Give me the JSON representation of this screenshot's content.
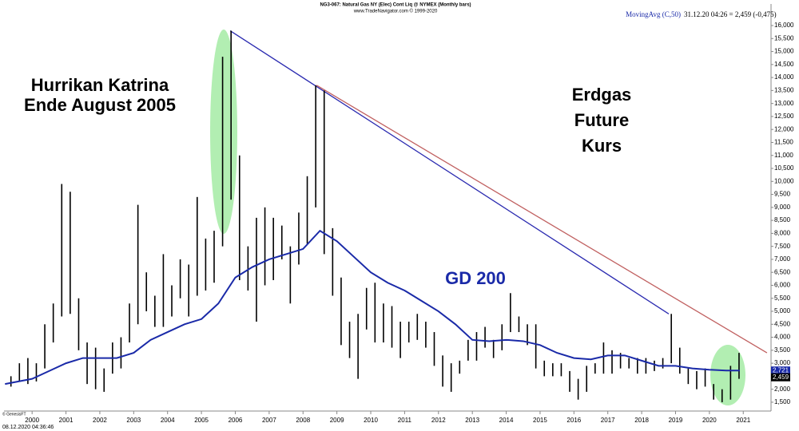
{
  "chart_data": {
    "type": "ohlc",
    "title": "NG3-067: Natural Gas NY (Elec) Cont Liq @ NYMEX  (Monthly bars)",
    "subtitle": "www.TradeNavigator.com © 1999-2020",
    "legend_name": "MovingAvg (C,50)",
    "legend_value": "31.12.20 04:26 = 2,459 (-0,475)",
    "footer_left": "© GenesisFT",
    "footer_date": "08.12.2020 04:36:46",
    "annotations": [
      {
        "text": "Hurrikan Katrina"
      },
      {
        "text": "Ende August 2005"
      },
      {
        "text": "Erdgas"
      },
      {
        "text": "Future"
      },
      {
        "text": "Kurs"
      },
      {
        "text": "GD 200"
      }
    ],
    "color": "#000000",
    "x": [
      1999.375,
      1999.625,
      1999.875,
      2000.125,
      2000.375,
      2000.625,
      2000.875,
      2001.125,
      2001.375,
      2001.625,
      2001.875,
      2002.125,
      2002.375,
      2002.625,
      2002.875,
      2003.125,
      2003.375,
      2003.625,
      2003.875,
      2004.125,
      2004.375,
      2004.625,
      2004.875,
      2005.125,
      2005.375,
      2005.625,
      2005.875,
      2006.125,
      2006.375,
      2006.625,
      2006.875,
      2007.125,
      2007.375,
      2007.625,
      2007.875,
      2008.125,
      2008.375,
      2008.625,
      2008.875,
      2009.125,
      2009.375,
      2009.625,
      2009.875,
      2010.125,
      2010.375,
      2010.625,
      2010.875,
      2011.125,
      2011.375,
      2011.625,
      2011.875,
      2012.125,
      2012.375,
      2012.625,
      2012.875,
      2013.125,
      2013.375,
      2013.625,
      2013.875,
      2014.125,
      2014.375,
      2014.625,
      2014.875,
      2015.125,
      2015.375,
      2015.625,
      2015.875,
      2016.125,
      2016.375,
      2016.625,
      2016.875,
      2017.125,
      2017.375,
      2017.625,
      2017.875,
      2018.125,
      2018.375,
      2018.625,
      2018.875,
      2019.125,
      2019.375,
      2019.625,
      2019.875,
      2020.125,
      2020.375,
      2020.625,
      2020.875
    ],
    "high": [
      2.5,
      3.0,
      3.2,
      3.0,
      4.5,
      5.3,
      9.9,
      9.6,
      5.5,
      3.8,
      3.6,
      2.8,
      3.8,
      4.0,
      5.3,
      9.1,
      6.5,
      5.6,
      7.2,
      6.0,
      7.0,
      6.8,
      9.4,
      7.8,
      8.1,
      14.8,
      15.8,
      11.0,
      7.5,
      8.6,
      9.0,
      8.6,
      8.3,
      7.5,
      8.8,
      10.2,
      13.7,
      13.5,
      8.2,
      6.3,
      4.6,
      4.9,
      5.9,
      6.1,
      5.3,
      5.2,
      4.6,
      4.6,
      4.9,
      4.6,
      4.2,
      3.3,
      3.0,
      3.1,
      3.9,
      4.2,
      4.4,
      3.9,
      4.5,
      5.7,
      4.8,
      4.5,
      4.5,
      3.1,
      3.0,
      3.0,
      2.7,
      2.4,
      2.9,
      3.0,
      3.8,
      3.5,
      3.4,
      3.2,
      3.2,
      3.2,
      3.1,
      3.2,
      4.9,
      3.6,
      2.8,
      2.7,
      2.8,
      2.2,
      2.0,
      2.9,
      3.4
    ],
    "low": [
      2.1,
      2.3,
      2.2,
      2.3,
      2.8,
      3.8,
      4.8,
      4.9,
      3.5,
      2.2,
      2.0,
      1.9,
      2.6,
      2.8,
      3.8,
      4.5,
      5.0,
      4.4,
      4.4,
      4.8,
      5.5,
      4.8,
      5.6,
      5.8,
      6.1,
      7.5,
      9.3,
      6.2,
      5.8,
      4.6,
      6.0,
      6.2,
      7.0,
      5.3,
      6.8,
      7.6,
      9.0,
      7.2,
      5.6,
      3.7,
      3.2,
      2.4,
      4.3,
      3.8,
      3.8,
      3.6,
      3.2,
      3.8,
      3.9,
      3.6,
      2.9,
      2.1,
      1.9,
      2.6,
      3.1,
      3.1,
      3.6,
      3.2,
      3.5,
      4.2,
      4.2,
      3.7,
      2.8,
      2.5,
      2.5,
      2.5,
      1.9,
      1.6,
      1.9,
      2.6,
      2.6,
      2.6,
      2.8,
      2.8,
      2.6,
      2.6,
      2.7,
      2.8,
      3.0,
      2.6,
      2.2,
      2.0,
      2.1,
      1.6,
      1.5,
      1.6,
      2.4
    ],
    "ma": {
      "name": "GD 200",
      "color": "#1a2aa8",
      "x": [
        1999.2,
        2000.0,
        2000.5,
        2001.0,
        2001.5,
        2002.0,
        2002.5,
        2003.0,
        2003.5,
        2004.0,
        2004.5,
        2005.0,
        2005.5,
        2006.0,
        2006.5,
        2007.0,
        2007.5,
        2008.0,
        2008.5,
        2009.0,
        2009.5,
        2010.0,
        2010.5,
        2011.0,
        2011.5,
        2012.0,
        2012.5,
        2013.0,
        2013.5,
        2014.0,
        2014.5,
        2015.0,
        2015.5,
        2016.0,
        2016.5,
        2017.0,
        2017.5,
        2018.0,
        2018.5,
        2019.0,
        2019.5,
        2020.0,
        2020.5,
        2020.9
      ],
      "values": [
        2.2,
        2.4,
        2.7,
        3.0,
        3.2,
        3.2,
        3.2,
        3.4,
        3.9,
        4.2,
        4.5,
        4.7,
        5.3,
        6.3,
        6.7,
        7.0,
        7.2,
        7.4,
        8.1,
        7.7,
        7.1,
        6.5,
        6.1,
        5.8,
        5.4,
        5.0,
        4.5,
        3.9,
        3.85,
        3.9,
        3.85,
        3.7,
        3.4,
        3.2,
        3.15,
        3.3,
        3.3,
        3.1,
        2.9,
        2.9,
        2.8,
        2.75,
        2.72,
        2.72
      ]
    },
    "trendlines": [
      {
        "color": "#2a2ab0",
        "x": [
          2005.85,
          2018.8
        ],
        "values": [
          15.8,
          4.9
        ]
      },
      {
        "color": "#c06060",
        "x": [
          2008.4,
          2021.7
        ],
        "values": [
          13.7,
          3.4
        ]
      }
    ],
    "price_labels": [
      {
        "value": 2.721,
        "label": "2,721",
        "color": "#1a2aa8"
      },
      {
        "value": 2.459,
        "label": "2,459",
        "color": "#000000"
      }
    ],
    "xlim": [
      1999.17,
      2021.82
    ],
    "xticks": [
      2000,
      2001,
      2002,
      2003,
      2004,
      2005,
      2006,
      2007,
      2008,
      2009,
      2010,
      2011,
      2012,
      2013,
      2014,
      2015,
      2016,
      2017,
      2018,
      2019,
      2020,
      2021
    ],
    "ylim": [
      1.16,
      16.83
    ],
    "yticks": [
      {
        "value": 1.5,
        "label": "1,500"
      },
      {
        "value": 2,
        "label": "2,000"
      },
      {
        "value": 2.5,
        "label": "2,500"
      },
      {
        "value": 3,
        "label": "3,000"
      },
      {
        "value": 3.5,
        "label": "3,500"
      },
      {
        "value": 4,
        "label": "4,000"
      },
      {
        "value": 4.5,
        "label": "4,500"
      },
      {
        "value": 5,
        "label": "5,000"
      },
      {
        "value": 5.5,
        "label": "5,500"
      },
      {
        "value": 6,
        "label": "6,000"
      },
      {
        "value": 6.5,
        "label": "6,500"
      },
      {
        "value": 7,
        "label": "7,000"
      },
      {
        "value": 7.5,
        "label": "7,500"
      },
      {
        "value": 8,
        "label": "8,000"
      },
      {
        "value": 8.5,
        "label": "8,500"
      },
      {
        "value": 9,
        "label": "9,000"
      },
      {
        "value": 9.5,
        "label": "9,500"
      },
      {
        "value": 10,
        "label": "10,000"
      },
      {
        "value": 10.5,
        "label": "10,500"
      },
      {
        "value": 11,
        "label": "11,000"
      },
      {
        "value": 11.5,
        "label": "11,500"
      },
      {
        "value": 12,
        "label": "12,000"
      },
      {
        "value": 12.5,
        "label": "12,500"
      },
      {
        "value": 13,
        "label": "13,000"
      },
      {
        "value": 13.5,
        "label": "13,500"
      },
      {
        "value": 14,
        "label": "14,000"
      },
      {
        "value": 14.5,
        "label": "14,500"
      },
      {
        "value": 15,
        "label": "15,000"
      },
      {
        "value": 15.5,
        "label": "15,500"
      },
      {
        "value": 16,
        "label": "16,000"
      }
    ]
  }
}
